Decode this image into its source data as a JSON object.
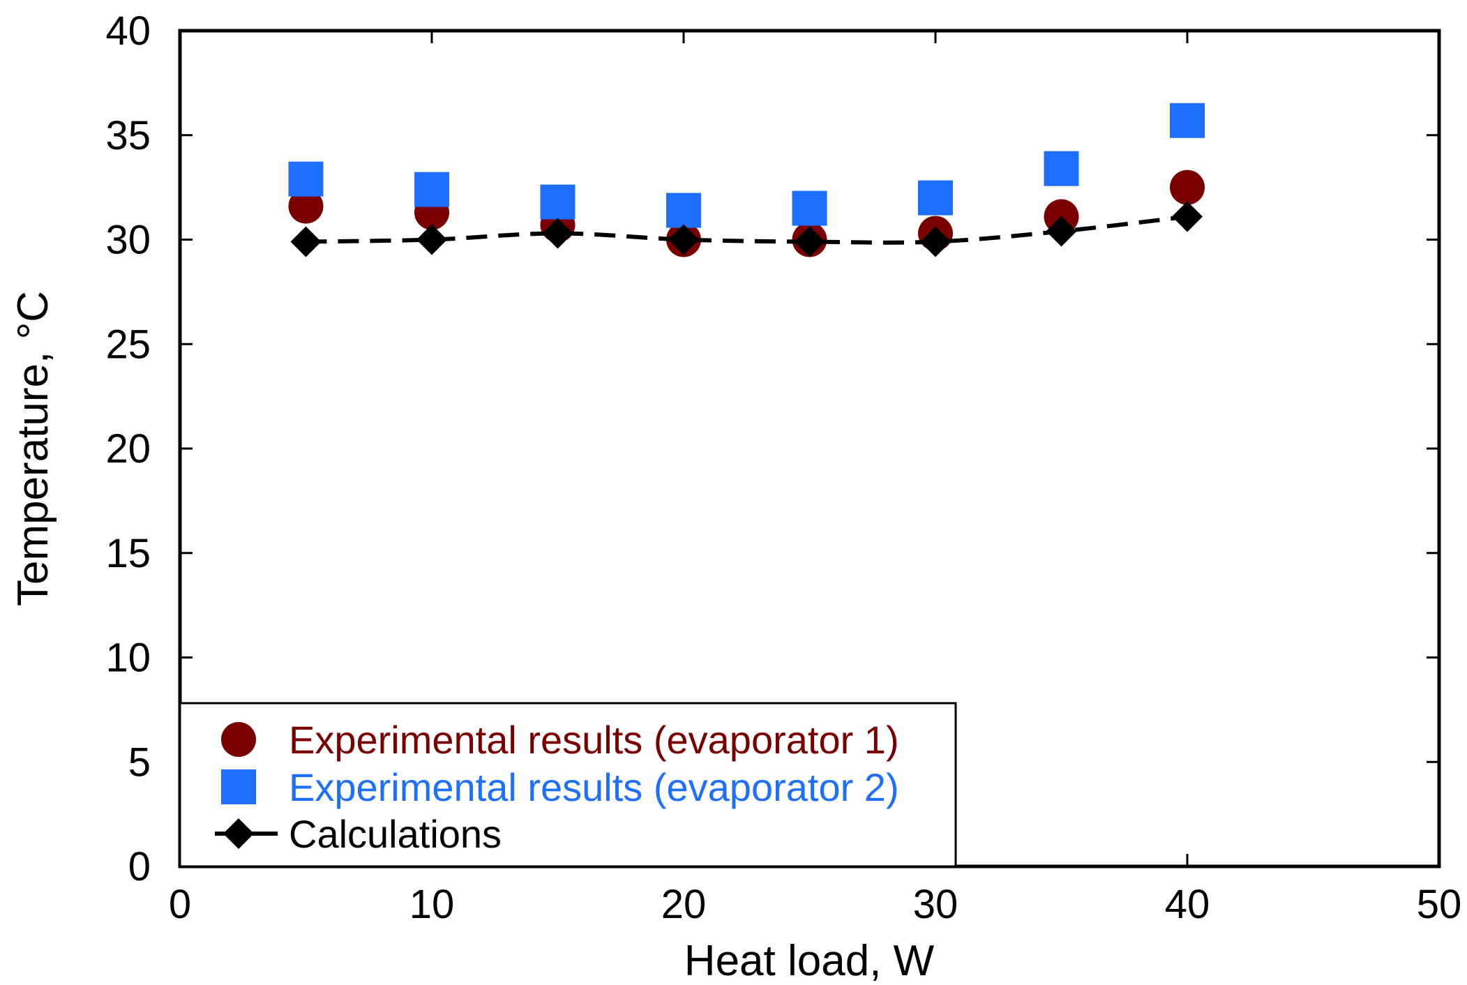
{
  "chart_data": {
    "type": "scatter",
    "title": "",
    "xlabel": "Heat load, W",
    "ylabel": "Temperature, °C",
    "xlim": [
      0,
      50
    ],
    "ylim": [
      0,
      40
    ],
    "xticks": [
      0,
      10,
      20,
      30,
      40,
      50
    ],
    "yticks": [
      0,
      5,
      10,
      15,
      20,
      25,
      30,
      35,
      40
    ],
    "grid": false,
    "legend_position": "bottom-left",
    "series": [
      {
        "name": "Experimental results (evaporator 1)",
        "marker": "circle",
        "line": "none",
        "color": "#7a0000",
        "x": [
          5,
          10,
          15,
          20,
          25,
          30,
          35,
          40
        ],
        "y": [
          31.6,
          31.3,
          30.7,
          30.0,
          30.0,
          30.3,
          31.1,
          32.5
        ]
      },
      {
        "name": "Experimental results (evaporator 2)",
        "marker": "square",
        "line": "none",
        "color": "#1f6fff",
        "x": [
          5,
          10,
          15,
          20,
          25,
          30,
          35,
          40
        ],
        "y": [
          32.9,
          32.4,
          31.8,
          31.4,
          31.5,
          32.0,
          33.4,
          35.7
        ]
      },
      {
        "name": "Calculations",
        "marker": "diamond",
        "line": "dashed",
        "color": "#000000",
        "x": [
          5,
          10,
          15,
          20,
          25,
          30,
          35,
          40
        ],
        "y": [
          29.9,
          30.0,
          30.3,
          30.0,
          29.9,
          29.9,
          30.4,
          31.1
        ]
      }
    ]
  }
}
